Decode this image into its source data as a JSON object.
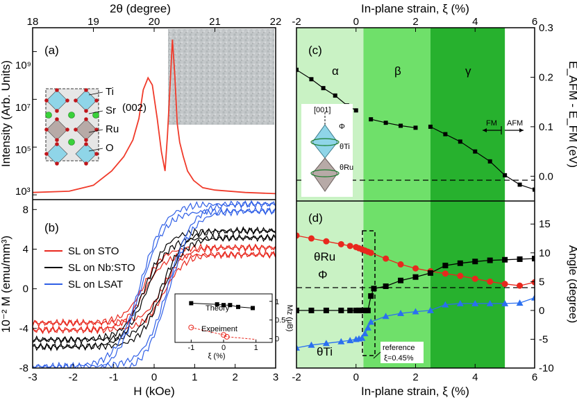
{
  "colors": {
    "red": "#e8281e",
    "black": "#000000",
    "blue": "#2f5fe6",
    "tri_blue": "#2a6ff0",
    "zone_alpha": "#c9f2c4",
    "zone_beta": "#6fe06a",
    "zone_gamma": "#27b12e",
    "xrd_line": "#f03a2a"
  },
  "panel_a": {
    "label": "(a)",
    "top_axis_label": "2θ (degree)",
    "top_ticks": [
      "18",
      "19",
      "20",
      "21",
      "22"
    ],
    "ylabel": "Intensity (Arb. Units)",
    "peak_label": "(002)",
    "legend_atoms": [
      "Ti",
      "Sr",
      "Ru",
      "O"
    ],
    "y_ticks": [
      "10³",
      "10⁵",
      "10⁷",
      "10⁹"
    ],
    "chart_data": {
      "type": "line",
      "xlim": [
        18,
        22
      ],
      "ylim_log10": [
        2.8,
        10.0
      ],
      "x": [
        18.0,
        18.6,
        19.0,
        19.3,
        19.5,
        19.65,
        19.75,
        19.82,
        19.9,
        19.97,
        20.05,
        20.12,
        20.18,
        20.22,
        20.26,
        20.3,
        20.34,
        20.38,
        20.42,
        20.48,
        20.55,
        20.65,
        20.8,
        21.0,
        21.5,
        22.0
      ],
      "log10_y": [
        3.1,
        3.15,
        3.4,
        4.0,
        4.6,
        5.3,
        6.2,
        7.4,
        7.9,
        7.6,
        6.2,
        4.8,
        4.0,
        5.5,
        7.5,
        9.5,
        8.0,
        6.0,
        5.2,
        4.6,
        4.0,
        3.6,
        3.3,
        3.2,
        3.1,
        3.05
      ]
    }
  },
  "panel_b": {
    "label": "(b)",
    "ylabel": "10⁻² M (emu/mm³)",
    "xlabel": "H (kOe)",
    "x_ticks": [
      "-3",
      "-2",
      "-1",
      "0",
      "1",
      "2",
      "3"
    ],
    "y_ticks": [
      "-8",
      "-4",
      "0",
      "4",
      "8"
    ],
    "legend": [
      "SL on STO",
      "SL on Nb:STO",
      "SL on LSAT"
    ],
    "inset": {
      "theory_label": "Theory",
      "experiment_label": "Expeiment",
      "xlabel": "ξ (%)",
      "ylabel": "Mz (μB)",
      "x_ticks": [
        "-1",
        "0",
        "1"
      ],
      "y_ticks": [
        "0",
        "0.5",
        "1"
      ],
      "theory": {
        "x": [
          -1.0,
          -0.2,
          0.0,
          0.2,
          0.45,
          0.9
        ],
        "y": [
          0.95,
          0.92,
          0.9,
          0.9,
          0.85,
          0.82
        ]
      },
      "experiment": {
        "x": [
          -1.0,
          0.0,
          0.1
        ],
        "y": [
          0.3,
          0.1,
          0.05
        ]
      }
    },
    "chart_data": {
      "type": "line",
      "xlim": [
        -3,
        3
      ],
      "ylim": [
        -8,
        9
      ],
      "series": [
        {
          "name": "SL on STO",
          "color_key": "red",
          "saturation": 3.8,
          "coercive": 0.25,
          "width": 0.5
        },
        {
          "name": "SL on Nb:STO",
          "color_key": "black",
          "saturation": 5.5,
          "coercive": 0.2,
          "width": 0.55
        },
        {
          "name": "SL on LSAT",
          "color_key": "blue",
          "saturation": 8.2,
          "coercive": 0.35,
          "width": 0.6
        }
      ]
    }
  },
  "panel_c": {
    "label": "(c)",
    "top_axis_label": "In-plane strain, ξ (%)",
    "top_ticks": [
      "-2",
      "0",
      "2",
      "4",
      "6"
    ],
    "ylabel": "E_AFM - E_FM (eV)",
    "y_ticks": [
      "0.0",
      "0.1",
      "0.2",
      "0.3"
    ],
    "zones": [
      "α",
      "β",
      "γ"
    ],
    "fm_label": "FM",
    "afm_label": "AFM",
    "struct_labels": [
      "[001]",
      "Φ",
      "θTi",
      "θRu"
    ],
    "chart_data": {
      "type": "line",
      "xlim": [
        -2,
        6
      ],
      "ylim": [
        -0.05,
        0.3
      ],
      "zone_bounds": [
        -2,
        0.25,
        2.5,
        5.0,
        6.0
      ],
      "segments": [
        {
          "x": [
            -2.0,
            -1.5,
            -1.1,
            -0.7,
            -0.3,
            0.0
          ],
          "y": [
            0.215,
            0.196,
            0.178,
            0.163,
            0.143,
            0.133
          ]
        },
        {
          "x": [
            0.5,
            1.0,
            1.5,
            2.0
          ],
          "y": [
            0.115,
            0.108,
            0.102,
            0.098
          ]
        },
        {
          "x": [
            2.5,
            3.0,
            3.5,
            4.0,
            4.5,
            5.0,
            5.5,
            6.0
          ],
          "y": [
            0.1,
            0.085,
            0.07,
            0.05,
            0.03,
            0.002,
            -0.017,
            -0.027
          ]
        }
      ]
    }
  },
  "panel_d": {
    "label": "(d)",
    "xlabel": "In-plane strain, ξ (%)",
    "ylabel": "Angle (degree)",
    "x_ticks": [
      "-2",
      "0",
      "2",
      "4",
      "6"
    ],
    "y_ticks": [
      "-10",
      "-5",
      "0",
      "5",
      "10",
      "15"
    ],
    "theta_ru_label": "θRu",
    "phi_label": "Φ",
    "theta_ti_label": "θTi",
    "reference_label": "reference",
    "reference_value": "ξ=0.45%",
    "chart_data": {
      "type": "line",
      "xlim": [
        -2,
        6
      ],
      "ylim": [
        -10,
        19
      ],
      "series": [
        {
          "name": "θRu",
          "color_key": "red",
          "marker": "circle",
          "x": [
            -2.0,
            -1.5,
            -1.0,
            -0.5,
            -0.2,
            0.0,
            0.1,
            0.2,
            0.3,
            0.4,
            0.5,
            1.0,
            1.5,
            2.0,
            2.5,
            3.0,
            3.5,
            4.0,
            4.5,
            5.0,
            5.5,
            6.0
          ],
          "y": [
            13.0,
            12.5,
            12.0,
            11.5,
            11.2,
            11.0,
            10.8,
            10.6,
            10.4,
            10.2,
            10.0,
            9.0,
            8.0,
            7.3,
            6.8,
            6.4,
            6.0,
            5.5,
            5.0,
            4.6,
            4.3,
            4.9
          ]
        },
        {
          "name": "Φ",
          "color_key": "black",
          "marker": "square",
          "x": [
            -2.0,
            -1.5,
            -1.0,
            -0.5,
            -0.2,
            0.0,
            0.1,
            0.2,
            0.3,
            0.4,
            0.5,
            0.6,
            1.0,
            1.5,
            2.0,
            2.5,
            3.0,
            3.5,
            4.0,
            4.5,
            5.0,
            5.5,
            6.0
          ],
          "y": [
            0.0,
            0.0,
            0.0,
            0.0,
            0.0,
            0.0,
            0.0,
            0.0,
            0.0,
            0.0,
            2.5,
            3.8,
            4.2,
            5.2,
            5.8,
            6.5,
            7.8,
            8.2,
            8.5,
            8.7,
            8.8,
            8.9,
            9.0
          ]
        },
        {
          "name": "θTi",
          "color_key": "tri_blue",
          "marker": "triangle",
          "x": [
            -2.0,
            -1.5,
            -1.0,
            -0.5,
            -0.2,
            0.0,
            0.1,
            0.2,
            0.3,
            0.4,
            0.5,
            1.0,
            1.5,
            2.0,
            2.5,
            3.0,
            3.5,
            4.0,
            4.5,
            5.0,
            5.5,
            6.0
          ],
          "y": [
            -6.5,
            -6.0,
            -5.7,
            -5.4,
            -5.2,
            -5.0,
            -4.9,
            -4.8,
            -4.0,
            -3.0,
            -2.0,
            -1.0,
            -0.5,
            -0.2,
            0.0,
            1.0,
            1.2,
            1.2,
            1.2,
            1.2,
            1.3,
            2.2
          ]
        }
      ]
    }
  }
}
